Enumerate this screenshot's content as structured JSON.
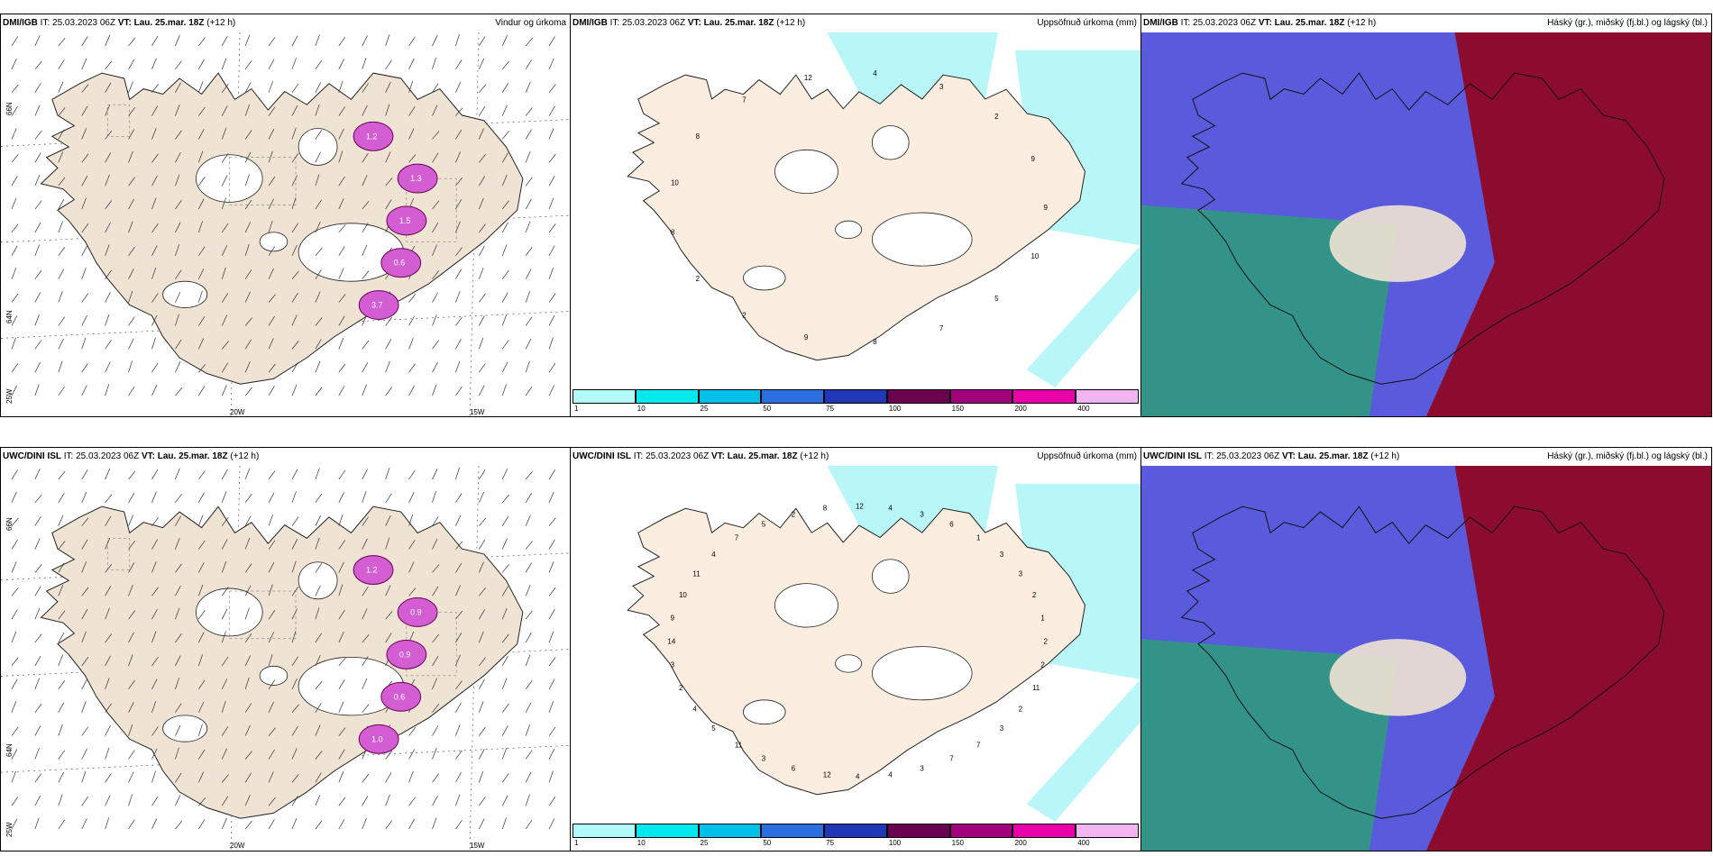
{
  "panels": [
    {
      "id": "p1",
      "model": "DMI/IGB",
      "it_label": "IT:",
      "it": "25.03.2023 06Z",
      "vt_label": "VT:",
      "vt": "Lau. 25.mar. 18Z",
      "lead": "(+12 h)",
      "title": "Vindur og úrkoma",
      "type": "wind"
    },
    {
      "id": "p2",
      "model": "DMI/IGB",
      "it_label": "IT:",
      "it": "25.03.2023 06Z",
      "vt_label": "VT:",
      "vt": "Lau. 25.mar. 18Z",
      "lead": "(+12 h)",
      "title": "Uppsöfnuð úrkoma (mm)",
      "type": "accum"
    },
    {
      "id": "p3",
      "model": "DMI/IGB",
      "it_label": "IT:",
      "it": "25.03.2023 06Z",
      "vt_label": "VT:",
      "vt": "Lau. 25.mar. 18Z",
      "lead": "(+12 h)",
      "title": "Háský (gr.), miðský (fj.bl.) og lágský (bl.)",
      "type": "cloud"
    },
    {
      "id": "p4",
      "model": "UWC/DINI ISL",
      "it_label": "IT:",
      "it": "25.03.2023 06Z",
      "vt_label": "VT:",
      "vt": "Lau. 25.mar. 18Z",
      "lead": "(+12 h)",
      "title": "",
      "type": "wind"
    },
    {
      "id": "p5",
      "model": "UWC/DINI ISL",
      "it_label": "IT:",
      "it": "25.03.2023 06Z",
      "vt_label": "VT:",
      "vt": "Lau. 25.mar. 18Z",
      "lead": "(+12 h)",
      "title": "Uppsöfnuð úrkoma (mm)",
      "type": "accum"
    },
    {
      "id": "p6",
      "model": "UWC/DINI ISL",
      "it_label": "IT:",
      "it": "25.03.2023 06Z",
      "vt_label": "VT:",
      "vt": "Lau. 25.mar. 18Z",
      "lead": "(+12 h)",
      "title": "Háský (gr.), miðský (fj.bl.) og lágský (bl.)",
      "type": "cloud"
    }
  ],
  "axis_labels": {
    "lat_top": "66N",
    "lat_bottom": "64N",
    "lon_left": "20W",
    "lon_right": "15W",
    "corner": "25W"
  },
  "legend": {
    "ticks": [
      "1",
      "10",
      "25",
      "50",
      "75",
      "100",
      "150",
      "200",
      "400"
    ],
    "colors": [
      "#b3fbfb",
      "#00e9ee",
      "#00bfe8",
      "#2a6fe0",
      "#2038b8",
      "#6a0050",
      "#a3007c",
      "#e800a8",
      "#f3b4f2"
    ]
  },
  "accum_values_top": [
    "9",
    "10",
    "5",
    "7",
    "8",
    "9",
    "2",
    "2",
    "8",
    "10",
    "8",
    "7",
    "12",
    "4",
    "3",
    "2",
    "9"
  ],
  "accum_values_bottom": [
    "2",
    "2",
    "11",
    "2",
    "3",
    "7",
    "7",
    "3",
    "4",
    "4",
    "12",
    "6",
    "3",
    "11",
    "5",
    "4",
    "2",
    "3",
    "14",
    "9",
    "10",
    "11",
    "4",
    "7",
    "5",
    "2",
    "8",
    "12",
    "4",
    "3",
    "6",
    "1",
    "3",
    "3",
    "2",
    "1"
  ],
  "wind_values_top": [
    "1.2",
    "1.3",
    "1.5",
    "0.6",
    "3.7"
  ],
  "wind_values_bottom": [
    "1.2",
    "0.9",
    "0.9",
    "0.6",
    "1.0"
  ],
  "colors": {
    "land": "#efe3d3",
    "snow": "#ffffff",
    "wind_precip": "#d35dd3",
    "accum_light": "#b8f6f8",
    "cloud_high": "#5a5adc",
    "cloud_mid": "#8b0c2e",
    "cloud_low": "#2e9e7a"
  }
}
